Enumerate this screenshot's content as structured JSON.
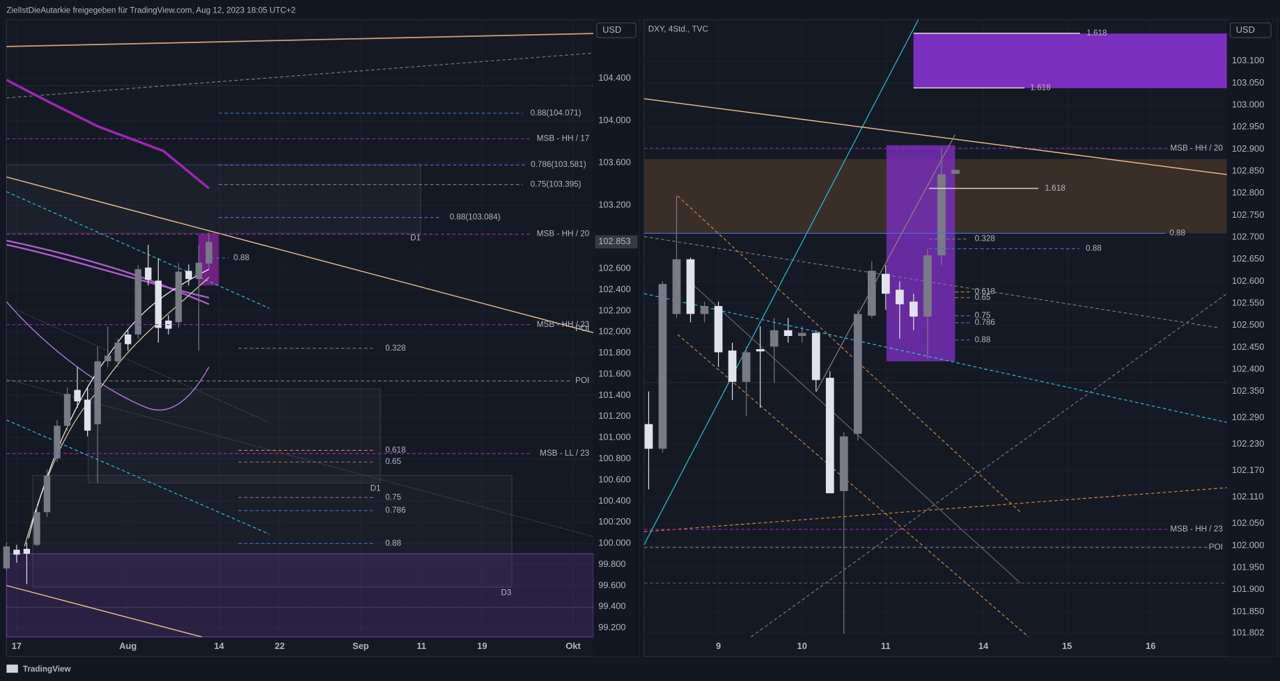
{
  "header": "ZielIstDieAutarkie freigegeben für TradingView.com, Aug 12, 2023 18:05 UTC+2",
  "footer": "TradingView",
  "chart_data": [
    {
      "type": "candlestick",
      "currency": "USD",
      "last_price": 102.853,
      "up_color": "#787b86",
      "down_color": "#e0e3eb",
      "xlim": [
        -1,
        57
      ],
      "ylim": [
        99.115,
        104.956
      ],
      "xticks": [
        {
          "value": 0,
          "label": "17"
        },
        {
          "value": 11,
          "label": "Aug"
        },
        {
          "value": 20,
          "label": "14"
        },
        {
          "value": 26,
          "label": "22"
        },
        {
          "value": 34,
          "label": "Sep"
        },
        {
          "value": 40,
          "label": "11"
        },
        {
          "value": 46,
          "label": "19"
        },
        {
          "value": 55,
          "label": "Okt"
        }
      ],
      "yticks": [
        {
          "value": 104.4,
          "label": "104.400"
        },
        {
          "value": 104.0,
          "label": "104.000"
        },
        {
          "value": 103.6,
          "label": "103.600"
        },
        {
          "value": 103.2,
          "label": "103.200"
        },
        {
          "value": 102.6,
          "label": "102.600"
        },
        {
          "value": 102.4,
          "label": "102.400"
        },
        {
          "value": 102.2,
          "label": "102.200"
        },
        {
          "value": 102.0,
          "label": "102.000"
        },
        {
          "value": 101.8,
          "label": "101.800"
        },
        {
          "value": 101.6,
          "label": "101.600"
        },
        {
          "value": 101.4,
          "label": "101.400"
        },
        {
          "value": 101.2,
          "label": "101.200"
        },
        {
          "value": 101.0,
          "label": "101.000"
        },
        {
          "value": 100.8,
          "label": "100.800"
        },
        {
          "value": 100.6,
          "label": "100.600"
        },
        {
          "value": 100.4,
          "label": "100.400"
        },
        {
          "value": 100.2,
          "label": "100.200"
        },
        {
          "value": 100.0,
          "label": "100.000"
        },
        {
          "value": 99.8,
          "label": "99.800"
        },
        {
          "value": 99.6,
          "label": "99.600"
        },
        {
          "value": 99.4,
          "label": "99.400"
        },
        {
          "value": 99.2,
          "label": "99.200"
        }
      ],
      "x": [
        -1,
        0,
        1,
        2,
        3,
        4,
        5,
        6,
        7,
        8,
        9,
        10,
        11,
        12,
        13,
        14,
        15,
        16,
        17,
        18,
        19
      ],
      "open": [
        99.763,
        99.94,
        99.948,
        99.986,
        100.295,
        100.804,
        101.113,
        101.452,
        101.36,
        101.128,
        101.723,
        101.723,
        101.977,
        101.977,
        102.61,
        102.486,
        102.108,
        102.093,
        102.579,
        102.502,
        102.648
      ],
      "high": [
        100.01,
        99.986,
        100.01,
        100.357,
        100.7,
        101.167,
        101.476,
        101.668,
        101.476,
        101.861,
        102.054,
        101.939,
        102.016,
        102.633,
        102.826,
        102.7,
        102.16,
        102.65,
        102.64,
        102.826,
        102.942
      ],
      "low": [
        99.74,
        99.817,
        99.616,
        99.971,
        100.25,
        100.773,
        101.067,
        101.283,
        101.013,
        100.573,
        101.668,
        101.668,
        101.823,
        101.939,
        102.44,
        101.9,
        101.977,
        102.039,
        102.44,
        101.823,
        102.6
      ],
      "close": [
        99.971,
        99.894,
        99.902,
        100.295,
        100.642,
        101.113,
        101.414,
        101.344,
        101.067,
        101.723,
        101.777,
        101.9,
        101.885,
        102.594,
        102.494,
        102.039,
        102.031,
        102.571,
        102.502,
        102.656,
        102.853
      ],
      "levels": [
        {
          "label": "0.88(104.071)",
          "value": 104.071,
          "color": "#3d6fe0"
        },
        {
          "label": "MSB - HH / 17",
          "value": 103.829,
          "color": "#9c27b0"
        },
        {
          "label": "0.786(103.581)",
          "value": 103.581,
          "color": "#3d6fe0"
        },
        {
          "label": "0.75(103.395)",
          "value": 103.395,
          "color": "#787b86"
        },
        {
          "label": "0.88(103.084)",
          "value": 103.084,
          "color": "#3d6fe0"
        },
        {
          "label": "MSB - HH / 20",
          "value": 102.926,
          "color": "#9c27b0"
        },
        {
          "label": "0.88",
          "value": 102.7,
          "color": "#3d6fe0"
        },
        {
          "label": "MSB - HH / 23",
          "value": 102.07,
          "color": "#9c27b0"
        },
        {
          "label": "POI",
          "value": 102.03,
          "color": "#787b86"
        },
        {
          "label": "0.328",
          "value": 101.846,
          "color": "#787b86"
        },
        {
          "label": "POI",
          "value": 101.537,
          "color": "#787b86"
        },
        {
          "label": "0.618",
          "value": 100.88,
          "color": "#d4883b"
        },
        {
          "label": "MSB - LL / 23",
          "value": 100.85,
          "color": "#9c27b0"
        },
        {
          "label": "0.65",
          "value": 100.77,
          "color": "#a0703a"
        },
        {
          "label": "0.75",
          "value": 100.434,
          "color": "#787b86"
        },
        {
          "label": "0.786",
          "value": 100.31,
          "color": "#3d6fe0"
        },
        {
          "label": "0.88",
          "value": 99.999,
          "color": "#3d6fe0"
        }
      ],
      "annotations": [
        "D1",
        "D1",
        "D3"
      ]
    },
    {
      "type": "candlestick",
      "title": "DXY, 4Std., TVC",
      "currency": "USD",
      "up_color": "#787b86",
      "down_color": "#e0e3eb",
      "xlim": [
        -5.33,
        36.47
      ],
      "ylim": [
        101.793,
        103.194
      ],
      "xticks": [
        {
          "value": 0,
          "label": "9"
        },
        {
          "value": 6,
          "label": "10"
        },
        {
          "value": 12,
          "label": "11"
        },
        {
          "value": 19,
          "label": "14"
        },
        {
          "value": 25,
          "label": "15"
        },
        {
          "value": 31,
          "label": "16"
        }
      ],
      "yticks": [
        {
          "value": 103.1,
          "label": "103.100"
        },
        {
          "value": 103.05,
          "label": "103.050"
        },
        {
          "value": 103.0,
          "label": "103.000"
        },
        {
          "value": 102.95,
          "label": "102.950"
        },
        {
          "value": 102.9,
          "label": "102.900"
        },
        {
          "value": 102.85,
          "label": "102.850"
        },
        {
          "value": 102.8,
          "label": "102.800"
        },
        {
          "value": 102.75,
          "label": "102.750"
        },
        {
          "value": 102.7,
          "label": "102.700"
        },
        {
          "value": 102.65,
          "label": "102.650"
        },
        {
          "value": 102.6,
          "label": "102.600"
        },
        {
          "value": 102.55,
          "label": "102.550"
        },
        {
          "value": 102.5,
          "label": "102.500"
        },
        {
          "value": 102.45,
          "label": "102.450"
        },
        {
          "value": 102.4,
          "label": "102.400"
        },
        {
          "value": 102.35,
          "label": "102.350"
        },
        {
          "value": 102.29,
          "label": "102.290"
        },
        {
          "value": 102.23,
          "label": "102.230"
        },
        {
          "value": 102.17,
          "label": "102.170"
        },
        {
          "value": 102.11,
          "label": "102.110"
        },
        {
          "value": 102.05,
          "label": "102.050"
        },
        {
          "value": 102.0,
          "label": "102.000"
        },
        {
          "value": 101.95,
          "label": "101.950"
        },
        {
          "value": 101.9,
          "label": "101.900"
        },
        {
          "value": 101.85,
          "label": "101.850"
        },
        {
          "value": 101.802,
          "label": "101.802"
        }
      ],
      "x": [
        -5,
        -4,
        -3,
        -2,
        -1,
        0,
        1,
        2,
        3,
        4,
        5,
        6,
        7,
        8,
        9,
        10,
        11,
        12,
        13,
        14,
        15,
        16,
        17
      ],
      "open": [
        102.276,
        102.22,
        102.526,
        102.65,
        102.526,
        102.544,
        102.443,
        102.372,
        102.446,
        102.452,
        102.489,
        102.476,
        102.483,
        102.381,
        102.124,
        102.254,
        102.522,
        102.617,
        102.581,
        102.554,
        102.52,
        102.659,
        102.844
      ],
      "high": [
        102.35,
        102.6,
        102.794,
        102.654,
        102.554,
        102.554,
        102.461,
        102.452,
        102.498,
        102.517,
        102.517,
        102.498,
        102.489,
        102.396,
        102.257,
        102.535,
        102.646,
        102.637,
        102.6,
        102.572,
        102.674,
        102.906,
        102.852
      ],
      "low": [
        102.128,
        102.211,
        102.517,
        102.507,
        102.507,
        102.406,
        102.331,
        102.294,
        102.313,
        102.369,
        102.461,
        102.461,
        102.35,
        102.119,
        101.8,
        102.239,
        102.517,
        102.535,
        102.47,
        102.489,
        102.424,
        102.637,
        102.844
      ],
      "close": [
        102.22,
        102.594,
        102.65,
        102.526,
        102.544,
        102.439,
        102.372,
        102.439,
        102.441,
        102.489,
        102.476,
        102.483,
        102.376,
        102.119,
        102.248,
        102.526,
        102.624,
        102.572,
        102.548,
        102.52,
        102.659,
        102.843,
        102.853
      ],
      "levels": [
        {
          "label": "1.618",
          "value": 103.163,
          "color": "#ffffff"
        },
        {
          "label": "1.618",
          "value": 103.039,
          "color": "#ffffff"
        },
        {
          "label": "MSB - HH / 20",
          "value": 102.902,
          "color": "#9c27b0"
        },
        {
          "label": "1.618",
          "value": 102.811,
          "color": "#ffffff"
        },
        {
          "label": "0.88",
          "value": 102.709,
          "color": "#3d6fe0"
        },
        {
          "label": "0.328",
          "value": 102.696,
          "color": "#787b86"
        },
        {
          "label": "0.88",
          "value": 102.674,
          "color": "#3d6fe0"
        },
        {
          "label": "0.618",
          "value": 102.576,
          "color": "#d4883b"
        },
        {
          "label": "0.65",
          "value": 102.563,
          "color": "#a0703a"
        },
        {
          "label": "0.75",
          "value": 102.522,
          "color": "#3d6fe0"
        },
        {
          "label": "0.786",
          "value": 102.506,
          "color": "#3d6fe0"
        },
        {
          "label": "0.88",
          "value": 102.467,
          "color": "#3d6fe0"
        },
        {
          "label": "MSB - HH / 23",
          "value": 102.037,
          "color": "#9c27b0"
        },
        {
          "label": "POI",
          "value": 101.996,
          "color": "#787b86"
        }
      ]
    }
  ]
}
